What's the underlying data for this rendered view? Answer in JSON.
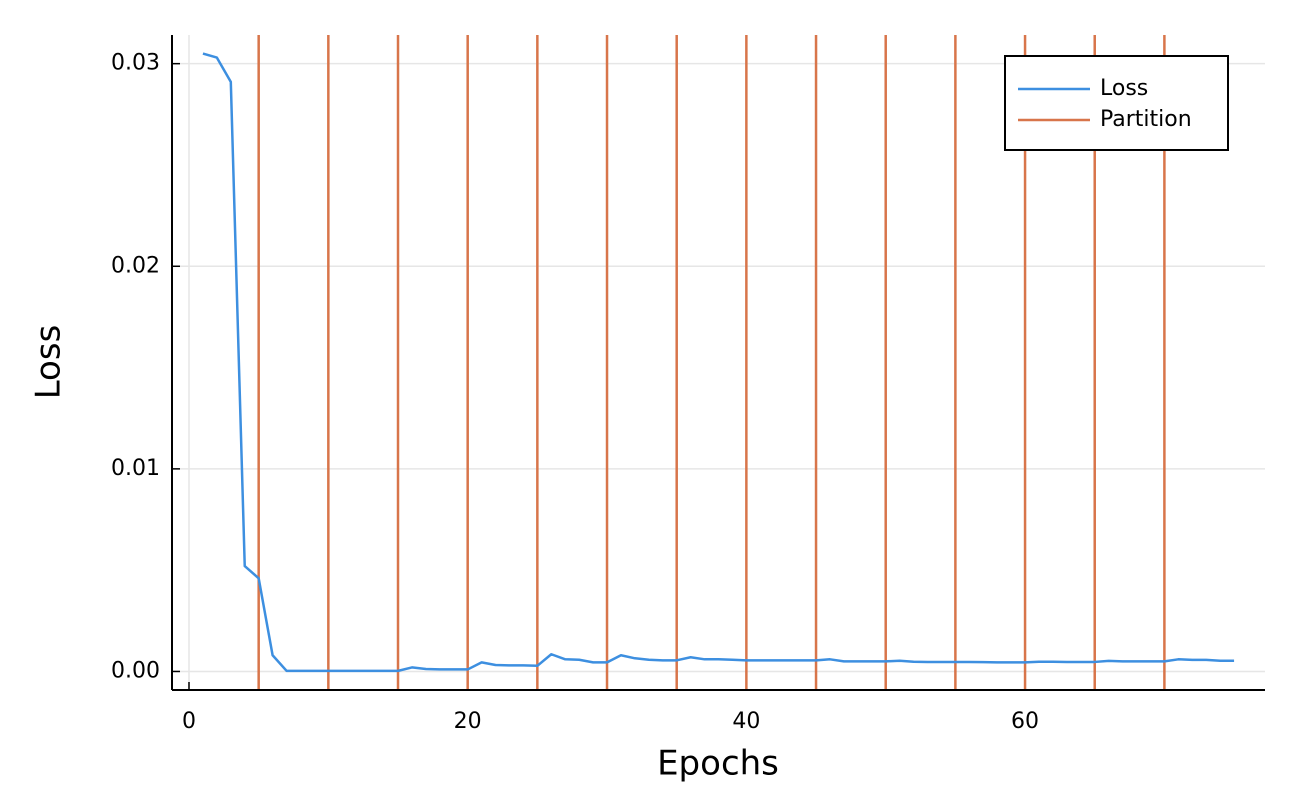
{
  "chart_data": {
    "type": "line",
    "xlabel": "Epochs",
    "ylabel": "Loss",
    "x": [
      1,
      2,
      3,
      4,
      5,
      6,
      7,
      8,
      9,
      10,
      11,
      12,
      13,
      14,
      15,
      16,
      17,
      18,
      19,
      20,
      21,
      22,
      23,
      24,
      25,
      26,
      27,
      28,
      29,
      30,
      31,
      32,
      33,
      34,
      35,
      36,
      37,
      38,
      39,
      40,
      41,
      42,
      43,
      44,
      45,
      46,
      47,
      48,
      49,
      50,
      51,
      52,
      53,
      54,
      55,
      56,
      57,
      58,
      59,
      60,
      61,
      62,
      63,
      64,
      65,
      66,
      67,
      68,
      69,
      70,
      71,
      72,
      73,
      74,
      75
    ],
    "series": [
      {
        "name": "Loss",
        "color": "#3d8fe0",
        "values": [
          0.0305,
          0.0303,
          0.0291,
          0.0052,
          0.0046,
          0.0008,
          3e-05,
          3e-05,
          3e-05,
          3e-05,
          3e-05,
          3e-05,
          3e-05,
          3e-05,
          3e-05,
          0.0002,
          0.00012,
          0.0001,
          0.0001,
          0.0001,
          0.00045,
          0.00032,
          0.0003,
          0.0003,
          0.00028,
          0.00085,
          0.0006,
          0.00058,
          0.00045,
          0.00045,
          0.0008,
          0.00065,
          0.00058,
          0.00055,
          0.00055,
          0.0007,
          0.0006,
          0.0006,
          0.00058,
          0.00055,
          0.00055,
          0.00055,
          0.00055,
          0.00055,
          0.00055,
          0.0006,
          0.0005,
          0.0005,
          0.0005,
          0.0005,
          0.00053,
          0.00048,
          0.00047,
          0.00047,
          0.00047,
          0.00047,
          0.00046,
          0.00045,
          0.00045,
          0.00045,
          0.00048,
          0.00048,
          0.00047,
          0.00047,
          0.00047,
          0.00052,
          0.0005,
          0.0005,
          0.0005,
          0.0005,
          0.0006,
          0.00057,
          0.00057,
          0.00053,
          0.00053
        ]
      }
    ],
    "vlines": {
      "name": "Partition",
      "color": "#d8754a",
      "x": [
        5,
        10,
        15,
        20,
        25,
        30,
        35,
        40,
        45,
        50,
        55,
        60,
        65,
        70
      ]
    },
    "xlim": [
      -1.22,
      77.22
    ],
    "xticks": [
      0,
      20,
      40,
      60
    ],
    "ylim": [
      -0.000915,
      0.031415
    ],
    "yticks": [
      {
        "value": 0,
        "label": "0.00"
      },
      0.01,
      0.02,
      0.03
    ],
    "grid": true,
    "legend": "top-right"
  }
}
